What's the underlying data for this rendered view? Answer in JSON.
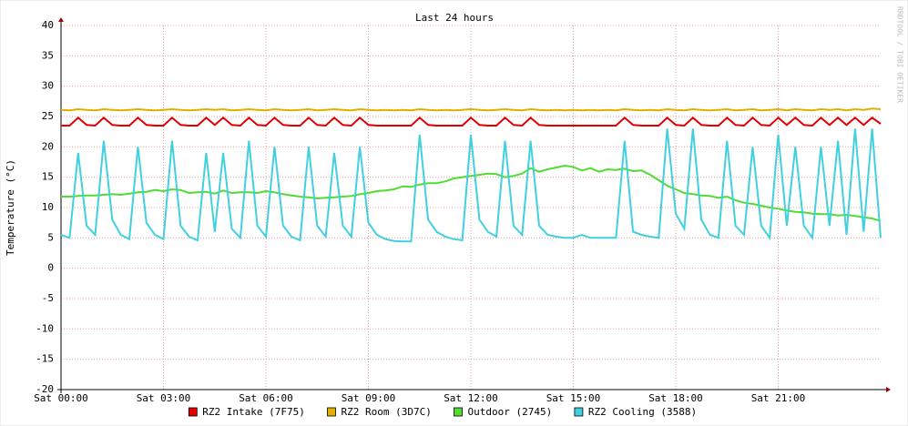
{
  "chart_data": {
    "type": "line",
    "title": "Last 24 hours",
    "y_label": "Temperature (°C)",
    "watermark": "RRDTOOL / TOBI OETIKER",
    "xlim": [
      0,
      24
    ],
    "xticks": [
      {
        "value": 0,
        "label": "Sat 00:00"
      },
      {
        "value": 3,
        "label": "Sat 03:00"
      },
      {
        "value": 6,
        "label": "Sat 06:00"
      },
      {
        "value": 9,
        "label": "Sat 09:00"
      },
      {
        "value": 12,
        "label": "Sat 12:00"
      },
      {
        "value": 15,
        "label": "Sat 15:00"
      },
      {
        "value": 18,
        "label": "Sat 18:00"
      },
      {
        "value": 21,
        "label": "Sat 21:00"
      }
    ],
    "ylim": [
      -20,
      40
    ],
    "yticks": [
      -20,
      -15,
      -10,
      -5,
      0,
      5,
      10,
      15,
      20,
      25,
      30,
      35,
      40
    ],
    "grid": true,
    "x": [
      0,
      0.25,
      0.5,
      0.75,
      1,
      1.25,
      1.5,
      1.75,
      2,
      2.25,
      2.5,
      2.75,
      3,
      3.25,
      3.5,
      3.75,
      4,
      4.25,
      4.5,
      4.75,
      5,
      5.25,
      5.5,
      5.75,
      6,
      6.25,
      6.5,
      6.75,
      7,
      7.25,
      7.5,
      7.75,
      8,
      8.25,
      8.5,
      8.75,
      9,
      9.25,
      9.5,
      9.75,
      10,
      10.25,
      10.5,
      10.75,
      11,
      11.25,
      11.5,
      11.75,
      12,
      12.25,
      12.5,
      12.75,
      13,
      13.25,
      13.5,
      13.75,
      14,
      14.25,
      14.5,
      14.75,
      15,
      15.25,
      15.5,
      15.75,
      16,
      16.25,
      16.5,
      16.75,
      17,
      17.25,
      17.5,
      17.75,
      18,
      18.25,
      18.5,
      18.75,
      19,
      19.25,
      19.5,
      19.75,
      20,
      20.25,
      20.5,
      20.75,
      21,
      21.25,
      21.5,
      21.75,
      22,
      22.25,
      22.5,
      22.75,
      23,
      23.25,
      23.5,
      23.75,
      24
    ],
    "series": [
      {
        "name": "RZ2 Intake (7F75)",
        "color": "#e00000",
        "values": [
          23.5,
          23.5,
          24.8,
          23.6,
          23.5,
          24.8,
          23.6,
          23.5,
          23.5,
          24.8,
          23.6,
          23.5,
          23.5,
          24.8,
          23.6,
          23.5,
          23.5,
          24.8,
          23.6,
          24.8,
          23.6,
          23.5,
          24.8,
          23.6,
          23.5,
          24.8,
          23.6,
          23.5,
          23.5,
          24.8,
          23.6,
          23.5,
          24.8,
          23.6,
          23.5,
          24.8,
          23.6,
          23.5,
          23.5,
          23.5,
          23.5,
          23.5,
          24.8,
          23.6,
          23.5,
          23.5,
          23.5,
          23.5,
          24.8,
          23.6,
          23.5,
          23.5,
          24.8,
          23.6,
          23.5,
          24.8,
          23.6,
          23.5,
          23.5,
          23.5,
          23.5,
          23.5,
          23.5,
          23.5,
          23.5,
          23.5,
          24.8,
          23.6,
          23.5,
          23.5,
          23.5,
          24.8,
          23.6,
          23.5,
          24.8,
          23.6,
          23.5,
          23.5,
          24.8,
          23.6,
          23.5,
          24.8,
          23.6,
          23.5,
          24.8,
          23.6,
          24.8,
          23.6,
          23.5,
          24.8,
          23.6,
          24.8,
          23.6,
          24.8,
          23.6,
          24.8,
          23.8
        ]
      },
      {
        "name": "RZ2 Room (3D7C)",
        "color": "#e0b000",
        "values": [
          26.1,
          26.0,
          26.2,
          26.1,
          26.0,
          26.2,
          26.1,
          26.0,
          26.1,
          26.2,
          26.1,
          26.0,
          26.1,
          26.2,
          26.1,
          26.0,
          26.1,
          26.2,
          26.1,
          26.2,
          26.0,
          26.1,
          26.2,
          26.1,
          26.0,
          26.2,
          26.1,
          26.0,
          26.1,
          26.2,
          26.0,
          26.1,
          26.2,
          26.1,
          26.0,
          26.2,
          26.1,
          26.0,
          26.1,
          26.0,
          26.1,
          26.0,
          26.2,
          26.1,
          26.0,
          26.1,
          26.0,
          26.1,
          26.2,
          26.1,
          26.0,
          26.1,
          26.2,
          26.1,
          26.0,
          26.2,
          26.1,
          26.0,
          26.1,
          26.0,
          26.1,
          26.0,
          26.1,
          26.0,
          26.1,
          26.0,
          26.2,
          26.1,
          26.0,
          26.1,
          26.0,
          26.2,
          26.1,
          26.0,
          26.2,
          26.1,
          26.0,
          26.1,
          26.2,
          26.0,
          26.1,
          26.2,
          26.0,
          26.1,
          26.2,
          26.0,
          26.2,
          26.1,
          26.0,
          26.2,
          26.1,
          26.2,
          26.0,
          26.2,
          26.1,
          26.3,
          26.2
        ]
      },
      {
        "name": "Outdoor (2745)",
        "color": "#50dc32",
        "values": [
          11.8,
          11.8,
          11.9,
          12.0,
          12.0,
          12.1,
          12.2,
          12.1,
          12.3,
          12.5,
          12.6,
          12.9,
          12.7,
          13.0,
          12.9,
          12.4,
          12.5,
          12.6,
          12.3,
          12.8,
          12.4,
          12.5,
          12.5,
          12.4,
          12.7,
          12.5,
          12.2,
          12.0,
          11.8,
          11.7,
          11.5,
          11.6,
          11.7,
          11.8,
          11.9,
          12.2,
          12.4,
          12.7,
          12.8,
          13.0,
          13.5,
          13.4,
          13.8,
          14.0,
          14.0,
          14.3,
          14.8,
          15.0,
          15.2,
          15.4,
          15.6,
          15.5,
          15.0,
          15.2,
          15.6,
          16.5,
          15.9,
          16.3,
          16.6,
          16.9,
          16.7,
          16.1,
          16.5,
          15.9,
          16.3,
          16.2,
          16.4,
          16.0,
          16.1,
          15.4,
          14.5,
          13.6,
          13.0,
          12.4,
          12.2,
          12.0,
          11.9,
          11.6,
          11.8,
          11.2,
          10.8,
          10.6,
          10.3,
          10.0,
          9.8,
          9.5,
          9.3,
          9.2,
          9.0,
          8.9,
          8.9,
          8.7,
          8.8,
          8.6,
          8.4,
          8.2,
          7.8
        ]
      },
      {
        "name": "RZ2 Cooling (3588)",
        "color": "#40d0e0",
        "values": [
          5.5,
          5,
          19,
          7,
          5.5,
          21,
          8,
          5.5,
          4.8,
          20,
          7.5,
          5.5,
          4.8,
          21,
          7,
          5.2,
          4.6,
          19,
          6,
          19,
          6.5,
          5,
          21,
          7,
          5.2,
          20,
          7,
          5.2,
          4.6,
          20,
          7,
          5.2,
          19,
          7,
          5.2,
          20,
          7.5,
          5.5,
          4.8,
          4.5,
          4.4,
          4.4,
          22,
          8,
          6,
          5.2,
          4.8,
          4.6,
          22,
          8,
          6,
          5.2,
          21,
          7,
          5.5,
          21,
          7,
          5.5,
          5.2,
          5,
          5,
          5.5,
          5,
          5,
          5,
          5,
          21,
          6,
          5.5,
          5.2,
          5,
          23,
          9,
          6.5,
          23,
          8,
          5.5,
          5,
          21,
          7,
          5.5,
          20,
          7,
          5,
          22,
          7,
          20,
          7,
          5,
          20,
          7,
          21,
          5.5,
          23,
          6,
          23,
          5
        ]
      }
    ]
  }
}
